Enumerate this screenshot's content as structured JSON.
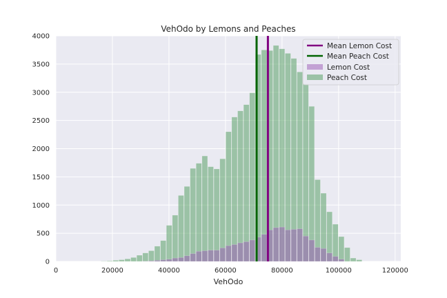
{
  "chart_data": {
    "type": "bar",
    "title": "VehOdo by Lemons and Peaches",
    "xlabel": "VehOdo",
    "ylabel": "",
    "xlim": [
      0,
      122000
    ],
    "ylim": [
      0,
      4000
    ],
    "xticks": [
      0,
      20000,
      40000,
      60000,
      80000,
      100000,
      120000
    ],
    "yticks": [
      0,
      500,
      1000,
      1500,
      2000,
      2500,
      3000,
      3500,
      4000
    ],
    "grid": true,
    "legend_position": "top-right",
    "bin_width": 2100,
    "bin_start": 16000,
    "series": [
      {
        "name": "Peach Cost",
        "kind": "histogram",
        "color": "#4c9a5a",
        "bin_left": [
          16000,
          18100,
          20200,
          22300,
          24400,
          26500,
          28600,
          30700,
          32800,
          34900,
          37000,
          39100,
          41200,
          43300,
          45400,
          47500,
          49600,
          51700,
          53800,
          55900,
          58000,
          60100,
          62200,
          64300,
          66400,
          68500,
          70600,
          72700,
          74800,
          76900,
          79000,
          81100,
          83200,
          85300,
          87400,
          89500,
          91600,
          93700,
          95800,
          97900,
          100000,
          102100,
          104200,
          106300
        ],
        "values": [
          5,
          10,
          20,
          30,
          45,
          70,
          110,
          150,
          190,
          270,
          370,
          640,
          820,
          1170,
          1330,
          1650,
          1740,
          1870,
          1680,
          1640,
          1820,
          2300,
          2560,
          2670,
          2780,
          2990,
          3670,
          3750,
          3740,
          3830,
          3770,
          3690,
          3600,
          3360,
          3150,
          2750,
          1450,
          1210,
          880,
          660,
          440,
          245,
          60,
          30
        ]
      },
      {
        "name": "Lemon Cost",
        "kind": "histogram",
        "color": "#9b59b6",
        "bin_left": [
          30700,
          32800,
          34900,
          37000,
          39100,
          41200,
          43300,
          45400,
          47500,
          49600,
          51700,
          53800,
          55900,
          58000,
          60100,
          62200,
          64300,
          66400,
          68500,
          70600,
          72700,
          74800,
          76900,
          79000,
          81100,
          83200,
          85300,
          87400,
          89500,
          91600,
          93700,
          95800,
          97900,
          100000
        ],
        "values": [
          5,
          10,
          20,
          30,
          40,
          60,
          70,
          100,
          140,
          180,
          190,
          200,
          200,
          240,
          280,
          300,
          330,
          350,
          380,
          430,
          480,
          560,
          600,
          610,
          560,
          570,
          580,
          450,
          380,
          250,
          230,
          150,
          90,
          40
        ]
      },
      {
        "name": "Mean Lemon Cost",
        "kind": "vline",
        "color": "#800080",
        "x": 75000
      },
      {
        "name": "Mean Peach Cost",
        "kind": "vline",
        "color": "#006400",
        "x": 71000
      }
    ]
  }
}
